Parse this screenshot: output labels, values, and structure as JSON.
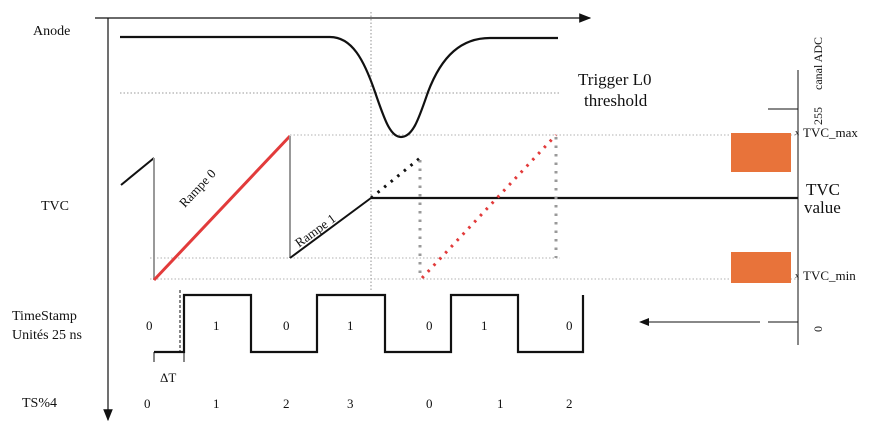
{
  "labels": {
    "anode": "Anode",
    "tvc": "TVC",
    "timestamp_line1": "TimeStamp",
    "timestamp_line2": "Unités 25 ns",
    "ts_mod": "TS%4",
    "trigger_line1": "Trigger L0",
    "trigger_line2": "threshold",
    "rampe0": "Rampe 0",
    "rampe1": "Rampe 1",
    "delta_t": "ΔT",
    "tvc_value_line1": "TVC",
    "tvc_value_line2": "value",
    "tvc_max": "TVC_max",
    "tvc_min": "TVC_min",
    "tvc_max_marker": "x",
    "tvc_min_marker": "x",
    "adc_axis": "canal ADC",
    "adc_255": "255",
    "adc_0": "0"
  },
  "timestamp_values": [
    "0",
    "1",
    "0",
    "1",
    "0",
    "1",
    "0"
  ],
  "ts_mod_values": [
    "0",
    "1",
    "2",
    "3",
    "0",
    "1",
    "2"
  ],
  "colors": {
    "ramp_red": "#e23b3b",
    "orange_block": "#e8733a",
    "gray": "#999999"
  }
}
